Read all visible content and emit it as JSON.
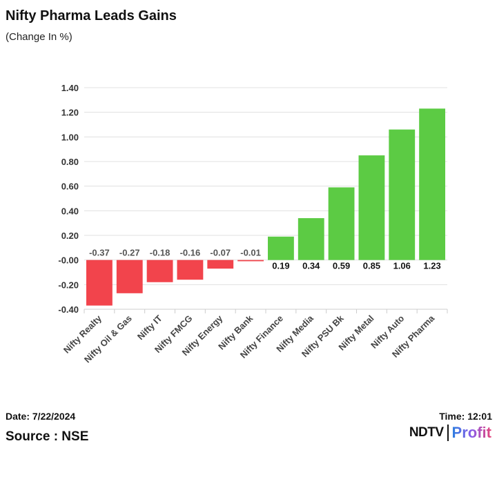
{
  "header": {
    "title": "Nifty Pharma Leads Gains",
    "subtitle": "(Change In %)"
  },
  "footer": {
    "date": "Date: 7/22/2024",
    "time": "Time: 12:01",
    "source": "Source : NSE",
    "logo_left": "NDTV",
    "logo_right": "Profit"
  },
  "chart_data": {
    "type": "bar",
    "categories": [
      "Nifty Realty",
      "Nifty Oil & Gas",
      "Nifty IT",
      "Nifty FMCG",
      "Nifty Energy",
      "Nifty Bank",
      "Nifty Finance",
      "Nifty Media",
      "Nifty PSU Bk",
      "Nifty Metal",
      "Nifty Auto",
      "Nifty Pharma"
    ],
    "values": [
      -0.37,
      -0.27,
      -0.18,
      -0.16,
      -0.07,
      -0.01,
      0.19,
      0.34,
      0.59,
      0.85,
      1.06,
      1.23
    ],
    "ylim": [
      -0.4,
      1.4
    ],
    "yticks": [
      "-0.40",
      "-0.20",
      "-0.00",
      "0.20",
      "0.40",
      "0.60",
      "0.80",
      "1.00",
      "1.20",
      "1.40"
    ],
    "grid": true,
    "colors": {
      "positive": "#5ccb44",
      "negative": "#f2444c"
    }
  }
}
